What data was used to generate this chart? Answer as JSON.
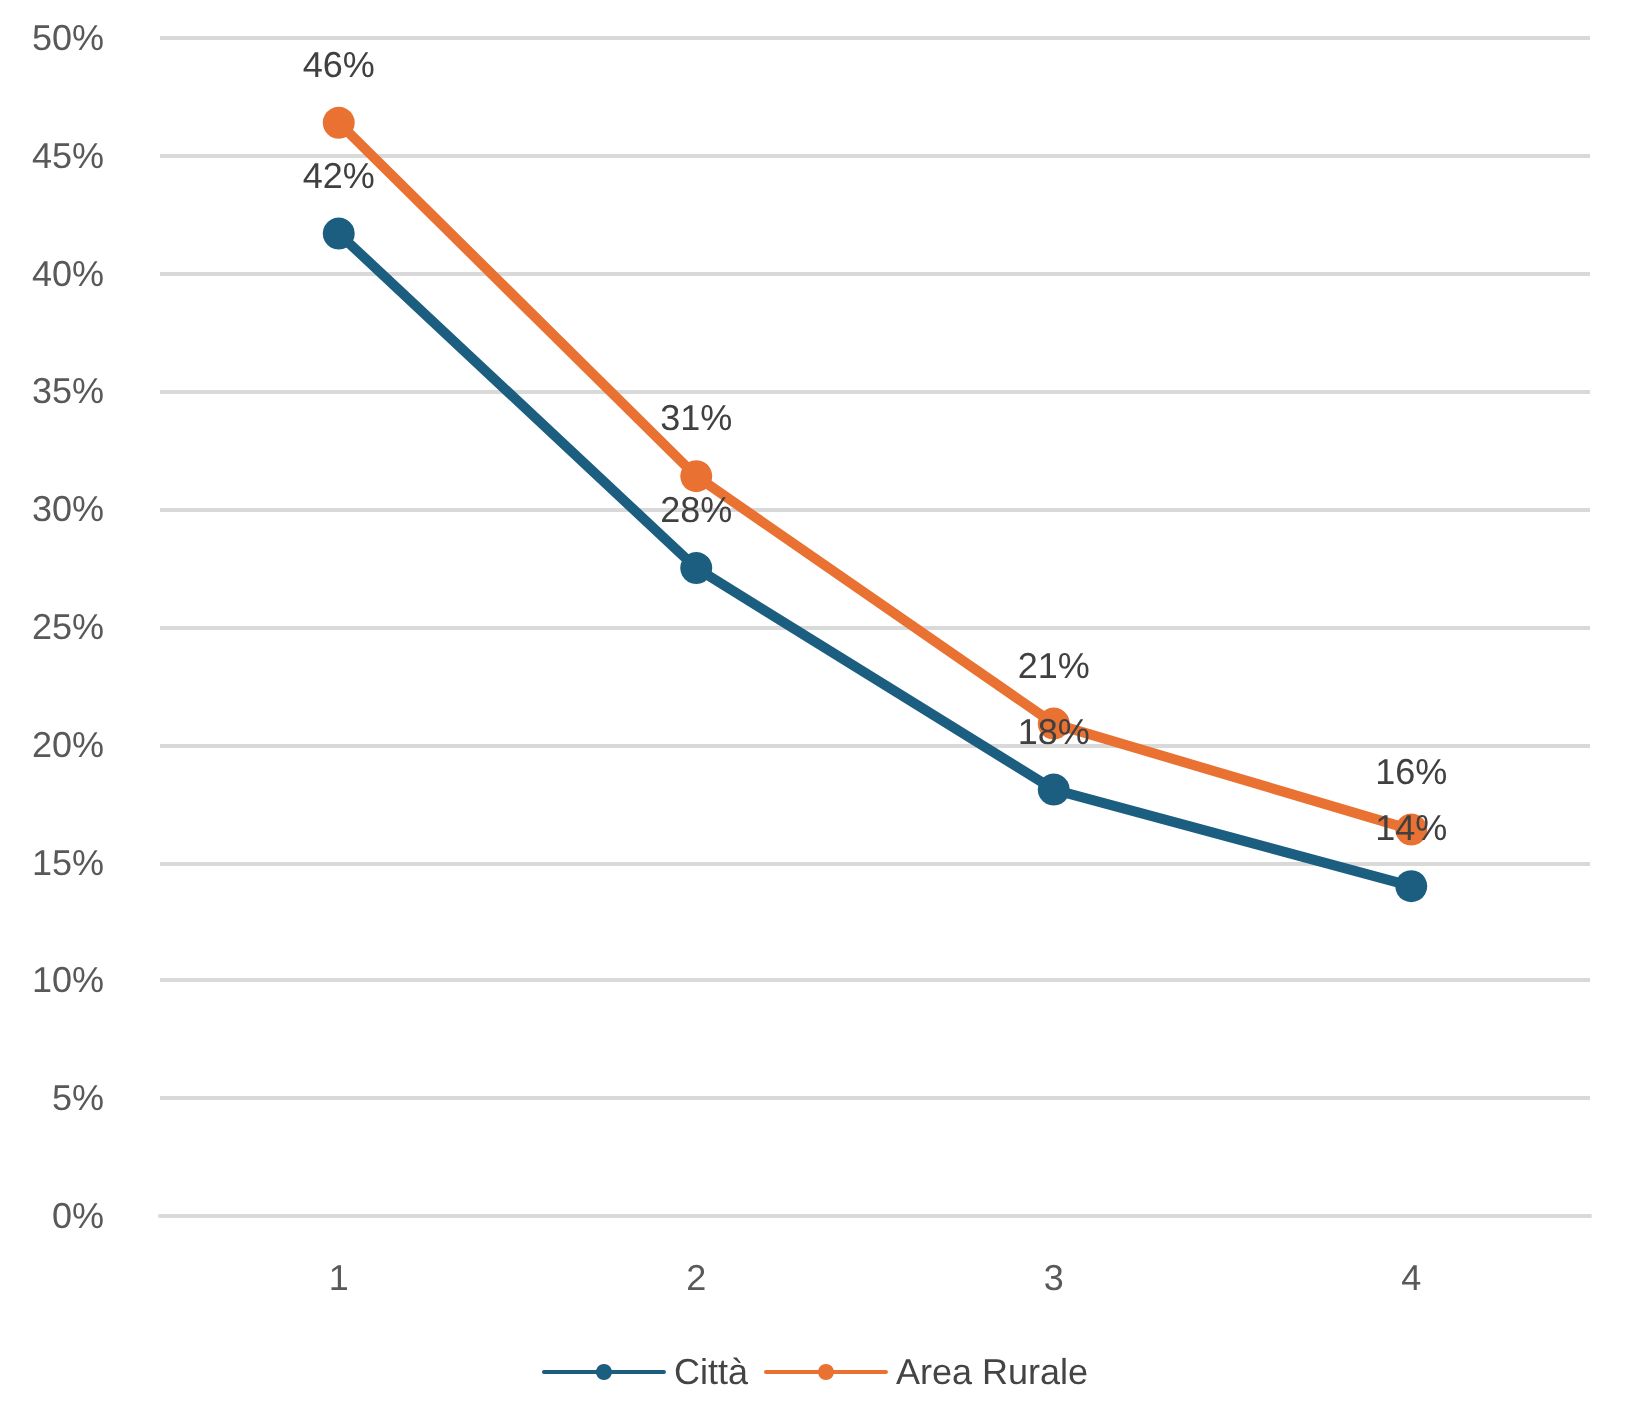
{
  "chart_data": {
    "type": "line",
    "categories": [
      "1",
      "2",
      "3",
      "4"
    ],
    "series": [
      {
        "name": "Città",
        "color": "#1b5e80",
        "values": [
          41.7,
          27.5,
          18.1,
          14.0
        ],
        "value_labels": [
          "42%",
          "28%",
          "18%",
          "14%"
        ]
      },
      {
        "name": "Area Rurale",
        "color": "#e97132",
        "values": [
          46.4,
          31.4,
          20.9,
          16.4
        ],
        "value_labels": [
          "46%",
          "31%",
          "21%",
          "16%"
        ]
      }
    ],
    "ylim": [
      0,
      50
    ],
    "yticks": [
      {
        "value": 0,
        "label": "0%"
      },
      {
        "value": 5,
        "label": "5%"
      },
      {
        "value": 10,
        "label": "10%"
      },
      {
        "value": 15,
        "label": "15%"
      },
      {
        "value": 20,
        "label": "20%"
      },
      {
        "value": 25,
        "label": "25%"
      },
      {
        "value": 30,
        "label": "30%"
      },
      {
        "value": 35,
        "label": "35%"
      },
      {
        "value": 40,
        "label": "40%"
      },
      {
        "value": 45,
        "label": "45%"
      },
      {
        "value": 50,
        "label": "50%"
      }
    ],
    "grid": "y",
    "legend": "bottom",
    "marker": "circle",
    "line_style": "solid"
  }
}
